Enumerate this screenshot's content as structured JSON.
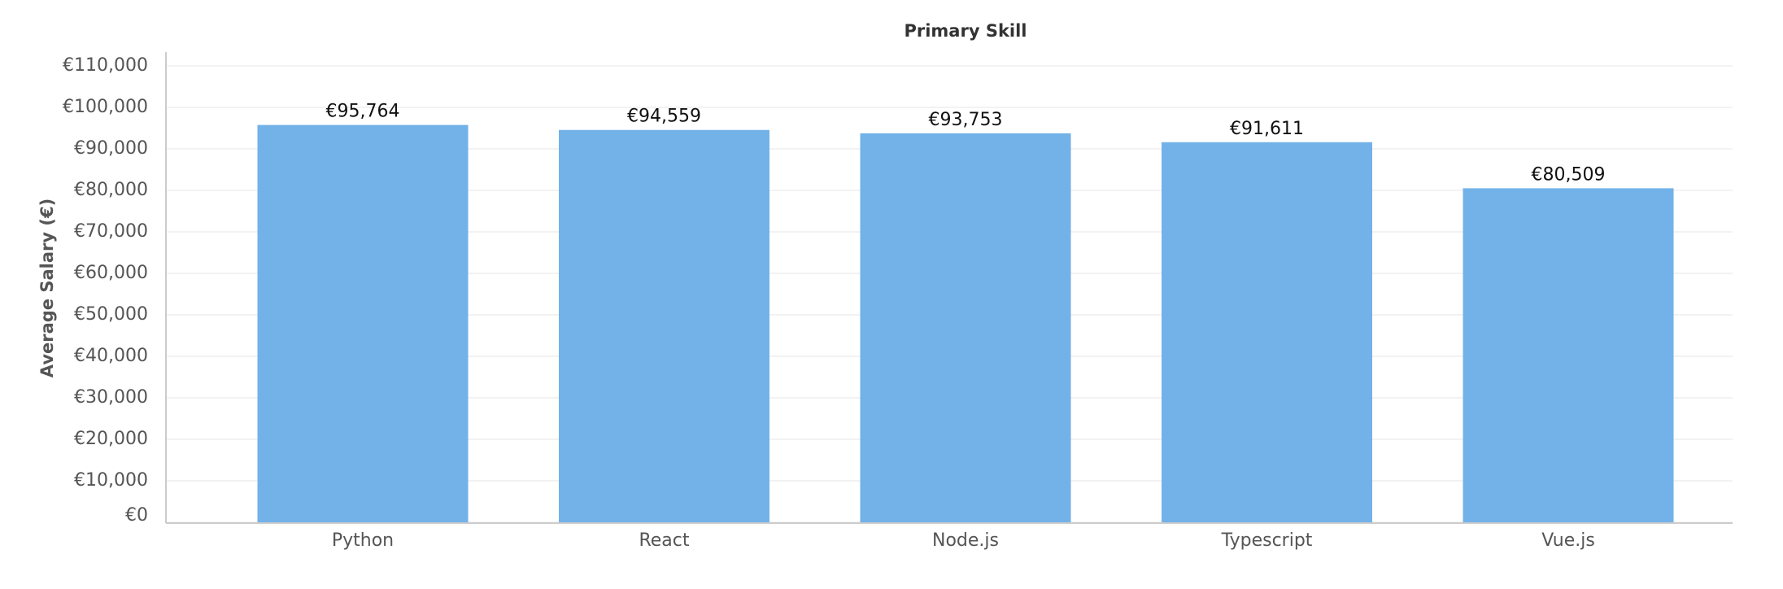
{
  "chart_data": {
    "type": "bar",
    "title": "Primary Skill",
    "y_label": "Average Salary (€)",
    "categories": [
      "Python",
      "React",
      "Node.js",
      "Typescript",
      "Vue.js"
    ],
    "values": [
      95764,
      94559,
      93753,
      91611,
      80509
    ],
    "value_labels": [
      "€95,764",
      "€94,559",
      "€93,753",
      "€91,611",
      "€80,509"
    ],
    "color": "#72b2e9",
    "ylim": [
      0,
      110000
    ],
    "yticks": [
      {
        "value": 0,
        "label": "€0"
      },
      {
        "value": 10000,
        "label": "€10,000"
      },
      {
        "value": 20000,
        "label": "€20,000"
      },
      {
        "value": 30000,
        "label": "€30,000"
      },
      {
        "value": 40000,
        "label": "€40,000"
      },
      {
        "value": 50000,
        "label": "€50,000"
      },
      {
        "value": 60000,
        "label": "€60,000"
      },
      {
        "value": 70000,
        "label": "€70,000"
      },
      {
        "value": 80000,
        "label": "€80,000"
      },
      {
        "value": 90000,
        "label": "€90,000"
      },
      {
        "value": 100000,
        "label": "€100,000"
      },
      {
        "value": 110000,
        "label": "€110,000"
      }
    ],
    "grid": true
  }
}
